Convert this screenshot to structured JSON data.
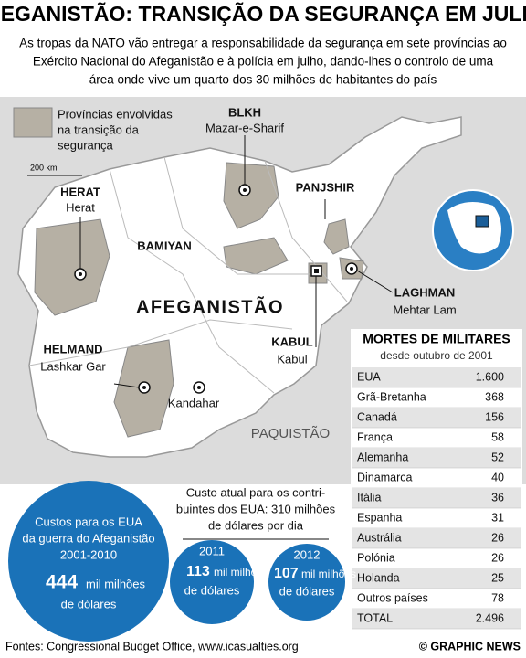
{
  "header": {
    "title": "AFEGANISTÃO: TRANSIÇÃO DA SEGURANÇA EM JULHO",
    "subtitle": [
      "As tropas da NATO vão entregar a responsabilidade da segurança em sete províncias ao",
      "Exército Nacional do Afeganistão e à polícia em julho, dando-lhes o controlo de uma",
      "área onde vive um quarto dos 30 milhões de habitantes do país"
    ]
  },
  "legend": {
    "label": [
      "Províncias envolvidas",
      "na transição da",
      "segurança"
    ],
    "scale": "200 km"
  },
  "map": {
    "country": "AFEGANISTÃO",
    "neighbor": "PAQUISTÃO",
    "places": [
      {
        "province": "BLKH",
        "city": "Mazar-e-Sharif"
      },
      {
        "province": "HERAT",
        "city": "Herat"
      },
      {
        "province": "PANJSHIR"
      },
      {
        "province": "BAMIYAN"
      },
      {
        "province": "LAGHMAN",
        "city": "Mehtar Lam"
      },
      {
        "province": "HELMAND",
        "city": "Lashkar Gar"
      },
      {
        "province": "KABUL",
        "city": "Kabul"
      },
      {
        "city": "Kandahar"
      }
    ]
  },
  "table": {
    "title": "MORTES DE MILITARES",
    "subtitle": "desde outubro de 2001",
    "rows": [
      [
        "EUA",
        "1.600"
      ],
      [
        "Grã-Bretanha",
        "368"
      ],
      [
        "Canadá",
        "156"
      ],
      [
        "França",
        "58"
      ],
      [
        "Alemanha",
        "52"
      ],
      [
        "Dinamarca",
        "40"
      ],
      [
        "Itália",
        "36"
      ],
      [
        "Espanha",
        "31"
      ],
      [
        "Austrália",
        "26"
      ],
      [
        "Polónia",
        "26"
      ],
      [
        "Holanda",
        "25"
      ],
      [
        "Outros países",
        "78"
      ],
      [
        "TOTAL",
        "2.496"
      ]
    ]
  },
  "costs": {
    "main": [
      "Custos para os EUA",
      "da guerra do Afeganistão",
      "2001-2010"
    ],
    "main_value": "444",
    "main_unit": [
      "mil milhões",
      "de dólares"
    ],
    "note": [
      "Custo atual para os contri-",
      "buintes dos EUA: 310 milhões",
      "de dólares por dia"
    ],
    "years": [
      {
        "year": "2011",
        "value": "113",
        "unit": [
          "mil milhões",
          "de dólares"
        ]
      },
      {
        "year": "2012",
        "value": "107",
        "unit": [
          "mil milhões",
          "de dólares"
        ]
      }
    ]
  },
  "footer": {
    "source": "Fontes: Congressional Budget Office, www.icasualties.org",
    "credit": "© GRAPHIC NEWS"
  }
}
